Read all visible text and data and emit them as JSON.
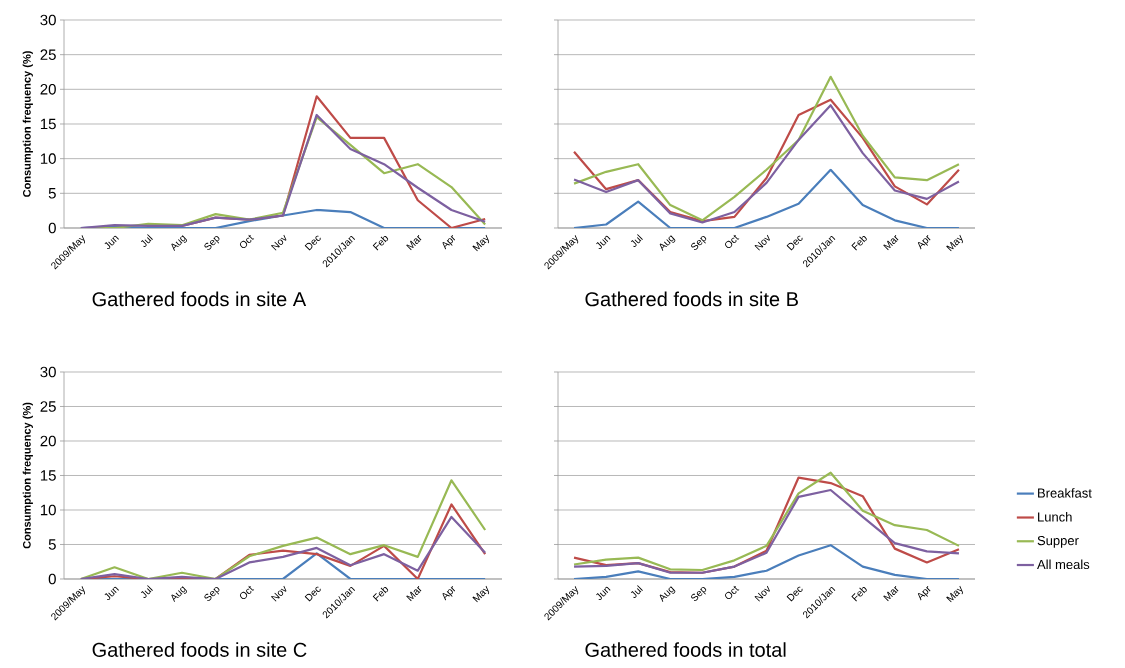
{
  "chart_data": [
    {
      "type": "line",
      "title": "Gathered foods in site A",
      "ylabel": "Consumption frequency (%)",
      "categories": [
        "2009/May",
        "Jun",
        "Jul",
        "Aug",
        "Sep",
        "Oct",
        "Nov",
        "Dec",
        "2010/Jan",
        "Feb",
        "Mar",
        "Apr",
        "May"
      ],
      "ylim": [
        0,
        30
      ],
      "yticks": [
        0,
        5,
        10,
        15,
        20,
        25,
        30
      ],
      "grid": "y",
      "marker": "none",
      "series": [
        {
          "color": "#4a7ebb",
          "values": [
            0,
            0.2,
            0,
            0,
            0,
            1,
            1.8,
            2.6,
            2.3,
            0,
            0,
            0,
            0
          ]
        },
        {
          "color": "#be4b48",
          "values": [
            null,
            null,
            0.3,
            0.3,
            1.5,
            1.2,
            1.8,
            19,
            13,
            13,
            4,
            0,
            1.3
          ]
        },
        {
          "color": "#98b954",
          "values": [
            0,
            0,
            0.6,
            0.4,
            2,
            1.2,
            2.2,
            16,
            12,
            7.9,
            9.2,
            5.9,
            0.5
          ]
        },
        {
          "color": "#7d60a0",
          "values": [
            0,
            0.4,
            0.3,
            0.3,
            1.5,
            1.2,
            1.8,
            16.3,
            11.4,
            9.2,
            5.8,
            2.6,
            0.9
          ]
        }
      ]
    },
    {
      "type": "line",
      "title": "Gathered foods in site B",
      "categories": [
        "2009/May",
        "Jun",
        "Jul",
        "Aug",
        "Sep",
        "Oct",
        "Nov",
        "Dec",
        "2010/Jan",
        "Feb",
        "Mar",
        "Apr",
        "May"
      ],
      "ylim": [
        0,
        30
      ],
      "yticks": [
        0,
        5,
        10,
        15,
        20,
        25,
        30
      ],
      "grid": "y",
      "marker": "none",
      "tick_labels": "x",
      "series": [
        {
          "color": "#4a7ebb",
          "values": [
            0,
            0.5,
            3.8,
            0,
            0,
            0,
            1.6,
            3.5,
            8.4,
            3.3,
            1.1,
            0,
            0
          ]
        },
        {
          "color": "#be4b48",
          "values": [
            11,
            5.6,
            6.9,
            2.3,
            1,
            1.6,
            7.2,
            16.3,
            18.5,
            13,
            6,
            3.4,
            8.4
          ]
        },
        {
          "color": "#98b954",
          "values": [
            6.4,
            8.1,
            9.2,
            3.3,
            1.1,
            4.5,
            8.4,
            12.7,
            21.8,
            13.3,
            7.3,
            6.9,
            9.2
          ]
        },
        {
          "color": "#7d60a0",
          "values": [
            7,
            5.2,
            6.9,
            2.1,
            0.8,
            2.3,
            6.5,
            12.7,
            17.7,
            10.8,
            5.4,
            4.2,
            6.7
          ]
        }
      ]
    },
    {
      "type": "line",
      "title": "Gathered foods in site C",
      "ylabel": "Consumption frequency (%)",
      "categories": [
        "2009/May",
        "Jun",
        "Jul",
        "Aug",
        "Sep",
        "Oct",
        "Nov",
        "Dec",
        "2010/Jan",
        "Feb",
        "Mar",
        "Apr",
        "May"
      ],
      "ylim": [
        0,
        30
      ],
      "yticks": [
        0,
        5,
        10,
        15,
        20,
        25,
        30
      ],
      "grid": "y",
      "marker": "none",
      "series": [
        {
          "color": "#4a7ebb",
          "values": [
            0,
            0,
            0,
            0,
            0,
            0,
            0,
            3.7,
            0,
            0,
            0,
            0,
            0
          ]
        },
        {
          "color": "#be4b48",
          "values": [
            0,
            0.4,
            0,
            0,
            0,
            3.5,
            4.1,
            3.6,
            1.9,
            4.8,
            0,
            10.8,
            3.6
          ]
        },
        {
          "color": "#98b954",
          "values": [
            0,
            1.7,
            0,
            0.9,
            0,
            3.3,
            4.8,
            6,
            3.6,
            4.9,
            3.2,
            14.3,
            7.1
          ]
        },
        {
          "color": "#7d60a0",
          "values": [
            0,
            0.7,
            0,
            0.3,
            0,
            2.4,
            3.2,
            4.5,
            2,
            3.6,
            1.2,
            9,
            3.8
          ]
        }
      ]
    },
    {
      "type": "line",
      "title": "Gathered foods in total",
      "categories": [
        "2009/May",
        "Jun",
        "Jul",
        "Aug",
        "Sep",
        "Oct",
        "Nov",
        "Dec",
        "2010/Jan",
        "Feb",
        "Mar",
        "Apr",
        "May"
      ],
      "ylim": [
        0,
        30
      ],
      "yticks": [
        0,
        5,
        10,
        15,
        20,
        25,
        30
      ],
      "grid": "y",
      "marker": "none",
      "legend": "right",
      "tick_labels": "x",
      "series": [
        {
          "name": "Breakfast",
          "color": "#4a7ebb",
          "values": [
            0,
            0.3,
            1.1,
            0,
            0,
            0.3,
            1.2,
            3.4,
            4.9,
            1.8,
            0.6,
            0,
            0
          ]
        },
        {
          "name": "Lunch",
          "color": "#be4b48",
          "values": [
            3.1,
            2,
            2.3,
            1,
            0.9,
            1.8,
            4.1,
            14.7,
            13.9,
            12,
            4.4,
            2.4,
            4.3
          ]
        },
        {
          "name": "Supper",
          "color": "#98b954",
          "values": [
            2.1,
            2.8,
            3.1,
            1.4,
            1.3,
            2.7,
            4.8,
            12.4,
            15.4,
            9.9,
            7.8,
            7.1,
            4.8
          ]
        },
        {
          "name": "All meals",
          "color": "#7d60a0",
          "values": [
            1.8,
            1.9,
            2.3,
            0.9,
            0.9,
            1.8,
            3.8,
            11.9,
            12.9,
            9,
            5.2,
            4,
            3.7
          ]
        }
      ]
    }
  ]
}
